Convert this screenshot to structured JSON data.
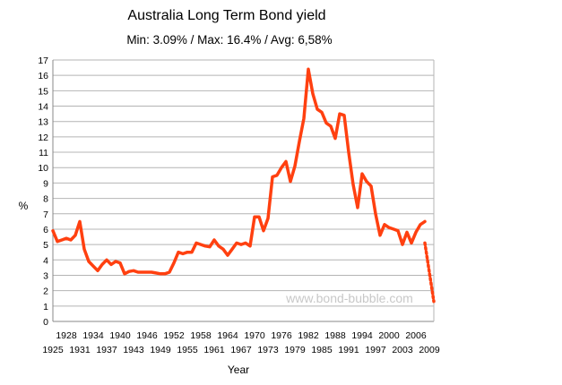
{
  "chart_data": {
    "type": "line",
    "title": "Australia Long Term Bond yield",
    "subtitle": "Min: 3.09% / Max: 16.4% / Avg: 6,58%",
    "xlabel": "Year",
    "ylabel": "%",
    "ylim": [
      0,
      17
    ],
    "xlim": [
      1925,
      2010
    ],
    "yticks": [
      "0",
      "1",
      "2",
      "3",
      "4",
      "5",
      "6",
      "7",
      "8",
      "9",
      "10",
      "11",
      "12",
      "13",
      "14",
      "15",
      "16",
      "17"
    ],
    "xticks_upper": [
      "1928",
      "1934",
      "1940",
      "1946",
      "1952",
      "1958",
      "1964",
      "1970",
      "1976",
      "1982",
      "1988",
      "1994",
      "2000",
      "2006"
    ],
    "xticks_lower": [
      "1925",
      "1931",
      "1937",
      "1943",
      "1949",
      "1955",
      "1961",
      "1967",
      "1973",
      "1979",
      "1985",
      "1991",
      "1997",
      "2003",
      "2009"
    ],
    "grid": true,
    "watermark": "www.bond-bubble.com",
    "series": [
      {
        "color": "#ff4010",
        "x": [
          1925,
          1926,
          1927,
          1928,
          1929,
          1930,
          1931,
          1932,
          1933,
          1934,
          1935,
          1936,
          1937,
          1938,
          1939,
          1940,
          1941,
          1942,
          1943,
          1944,
          1945,
          1946,
          1947,
          1948,
          1949,
          1950,
          1951,
          1952,
          1953,
          1954,
          1955,
          1956,
          1957,
          1958,
          1959,
          1960,
          1961,
          1962,
          1963,
          1964,
          1965,
          1966,
          1967,
          1968,
          1969,
          1970,
          1971,
          1972,
          1973,
          1974,
          1975,
          1976,
          1977,
          1978,
          1979,
          1980,
          1981,
          1982,
          1983,
          1984,
          1985,
          1986,
          1987,
          1988,
          1989,
          1990,
          1991,
          1992,
          1993,
          1994,
          1995,
          1996,
          1997,
          1998,
          1999,
          2000,
          2001,
          2002,
          2003,
          2004,
          2005,
          2006,
          2007,
          2008
        ],
        "y": [
          5.9,
          5.2,
          5.3,
          5.4,
          5.3,
          5.6,
          6.5,
          4.7,
          3.9,
          3.6,
          3.3,
          3.7,
          4.0,
          3.7,
          3.9,
          3.8,
          3.1,
          3.25,
          3.3,
          3.2,
          3.2,
          3.2,
          3.2,
          3.15,
          3.1,
          3.1,
          3.2,
          3.8,
          4.5,
          4.4,
          4.5,
          4.5,
          5.1,
          5.0,
          4.9,
          4.85,
          5.3,
          4.9,
          4.7,
          4.3,
          4.7,
          5.1,
          5.0,
          5.1,
          4.9,
          6.8,
          6.8,
          5.9,
          6.7,
          9.4,
          9.5,
          10.0,
          10.4,
          9.1,
          10.1,
          11.7,
          13.2,
          16.4,
          14.8,
          13.8,
          13.6,
          12.9,
          12.7,
          11.9,
          13.5,
          13.4,
          11.0,
          8.9,
          7.4,
          9.6,
          9.1,
          8.8,
          7.0,
          5.6,
          6.3,
          6.1,
          6.0,
          5.9,
          5.0,
          5.8,
          5.1,
          5.8,
          6.3,
          6.5
        ]
      },
      {
        "color": "#ff4010",
        "style": "dashed",
        "x": [
          2008,
          2010
        ],
        "y": [
          5.1,
          1.3
        ]
      }
    ]
  }
}
